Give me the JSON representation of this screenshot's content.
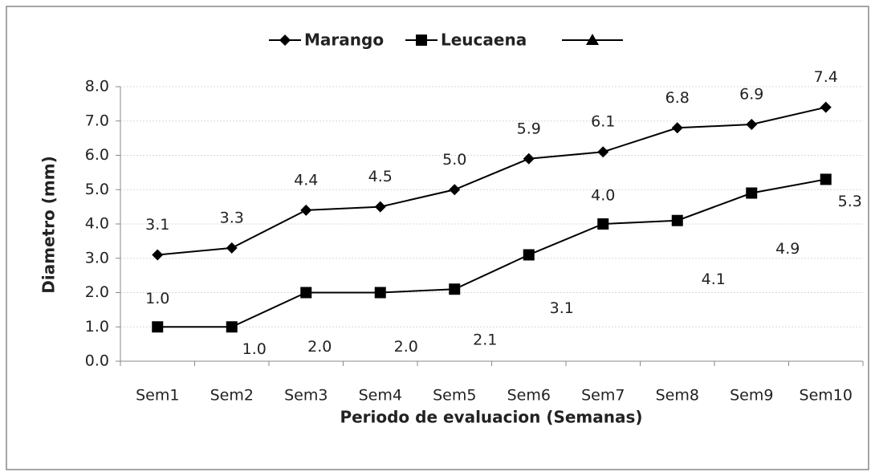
{
  "chart_data": {
    "type": "line",
    "x_label": "Periodo de evaluacion (Semanas)",
    "y_label": "Diametro (mm)",
    "categories": [
      "Sem1",
      "Sem2",
      "Sem3",
      "Sem4",
      "Sem5",
      "Sem6",
      "Sem7",
      "Sem8",
      "Sem9",
      "Sem10"
    ],
    "series": [
      {
        "name": "Marango",
        "color": "#000000",
        "marker": "diamond",
        "values": [
          3.1,
          3.3,
          4.4,
          4.5,
          5.0,
          5.9,
          6.1,
          6.8,
          6.9,
          7.4
        ],
        "value_labels": [
          "3.1",
          "3.3",
          "4.4",
          "4.5",
          "5.0",
          "5.9",
          "6.1",
          "6.8",
          "6.9",
          "7.4"
        ]
      },
      {
        "name": "Leucaena",
        "color": "#000000",
        "marker": "square",
        "values": [
          1.0,
          1.0,
          2.0,
          2.0,
          2.1,
          3.1,
          4.0,
          4.1,
          4.9,
          5.3
        ],
        "value_labels": [
          "1.0",
          "1.0",
          "2.0",
          "2.0",
          "2.1",
          "3.1",
          "4.0",
          "4.1",
          "4.9",
          "5.3"
        ]
      }
    ],
    "ylim": [
      0,
      8
    ],
    "yticks": [
      {
        "value": 0,
        "label": "0.0"
      },
      {
        "value": 1,
        "label": "1.0"
      },
      {
        "value": 2,
        "label": "2.0"
      },
      {
        "value": 3,
        "label": "3.0"
      },
      {
        "value": 4,
        "label": "4.0"
      },
      {
        "value": 5,
        "label": "5.0"
      },
      {
        "value": 6,
        "label": "6.0"
      },
      {
        "value": 7,
        "label": "7.0"
      },
      {
        "value": 8,
        "label": "8.0"
      }
    ],
    "grid": true,
    "legend": "top"
  }
}
